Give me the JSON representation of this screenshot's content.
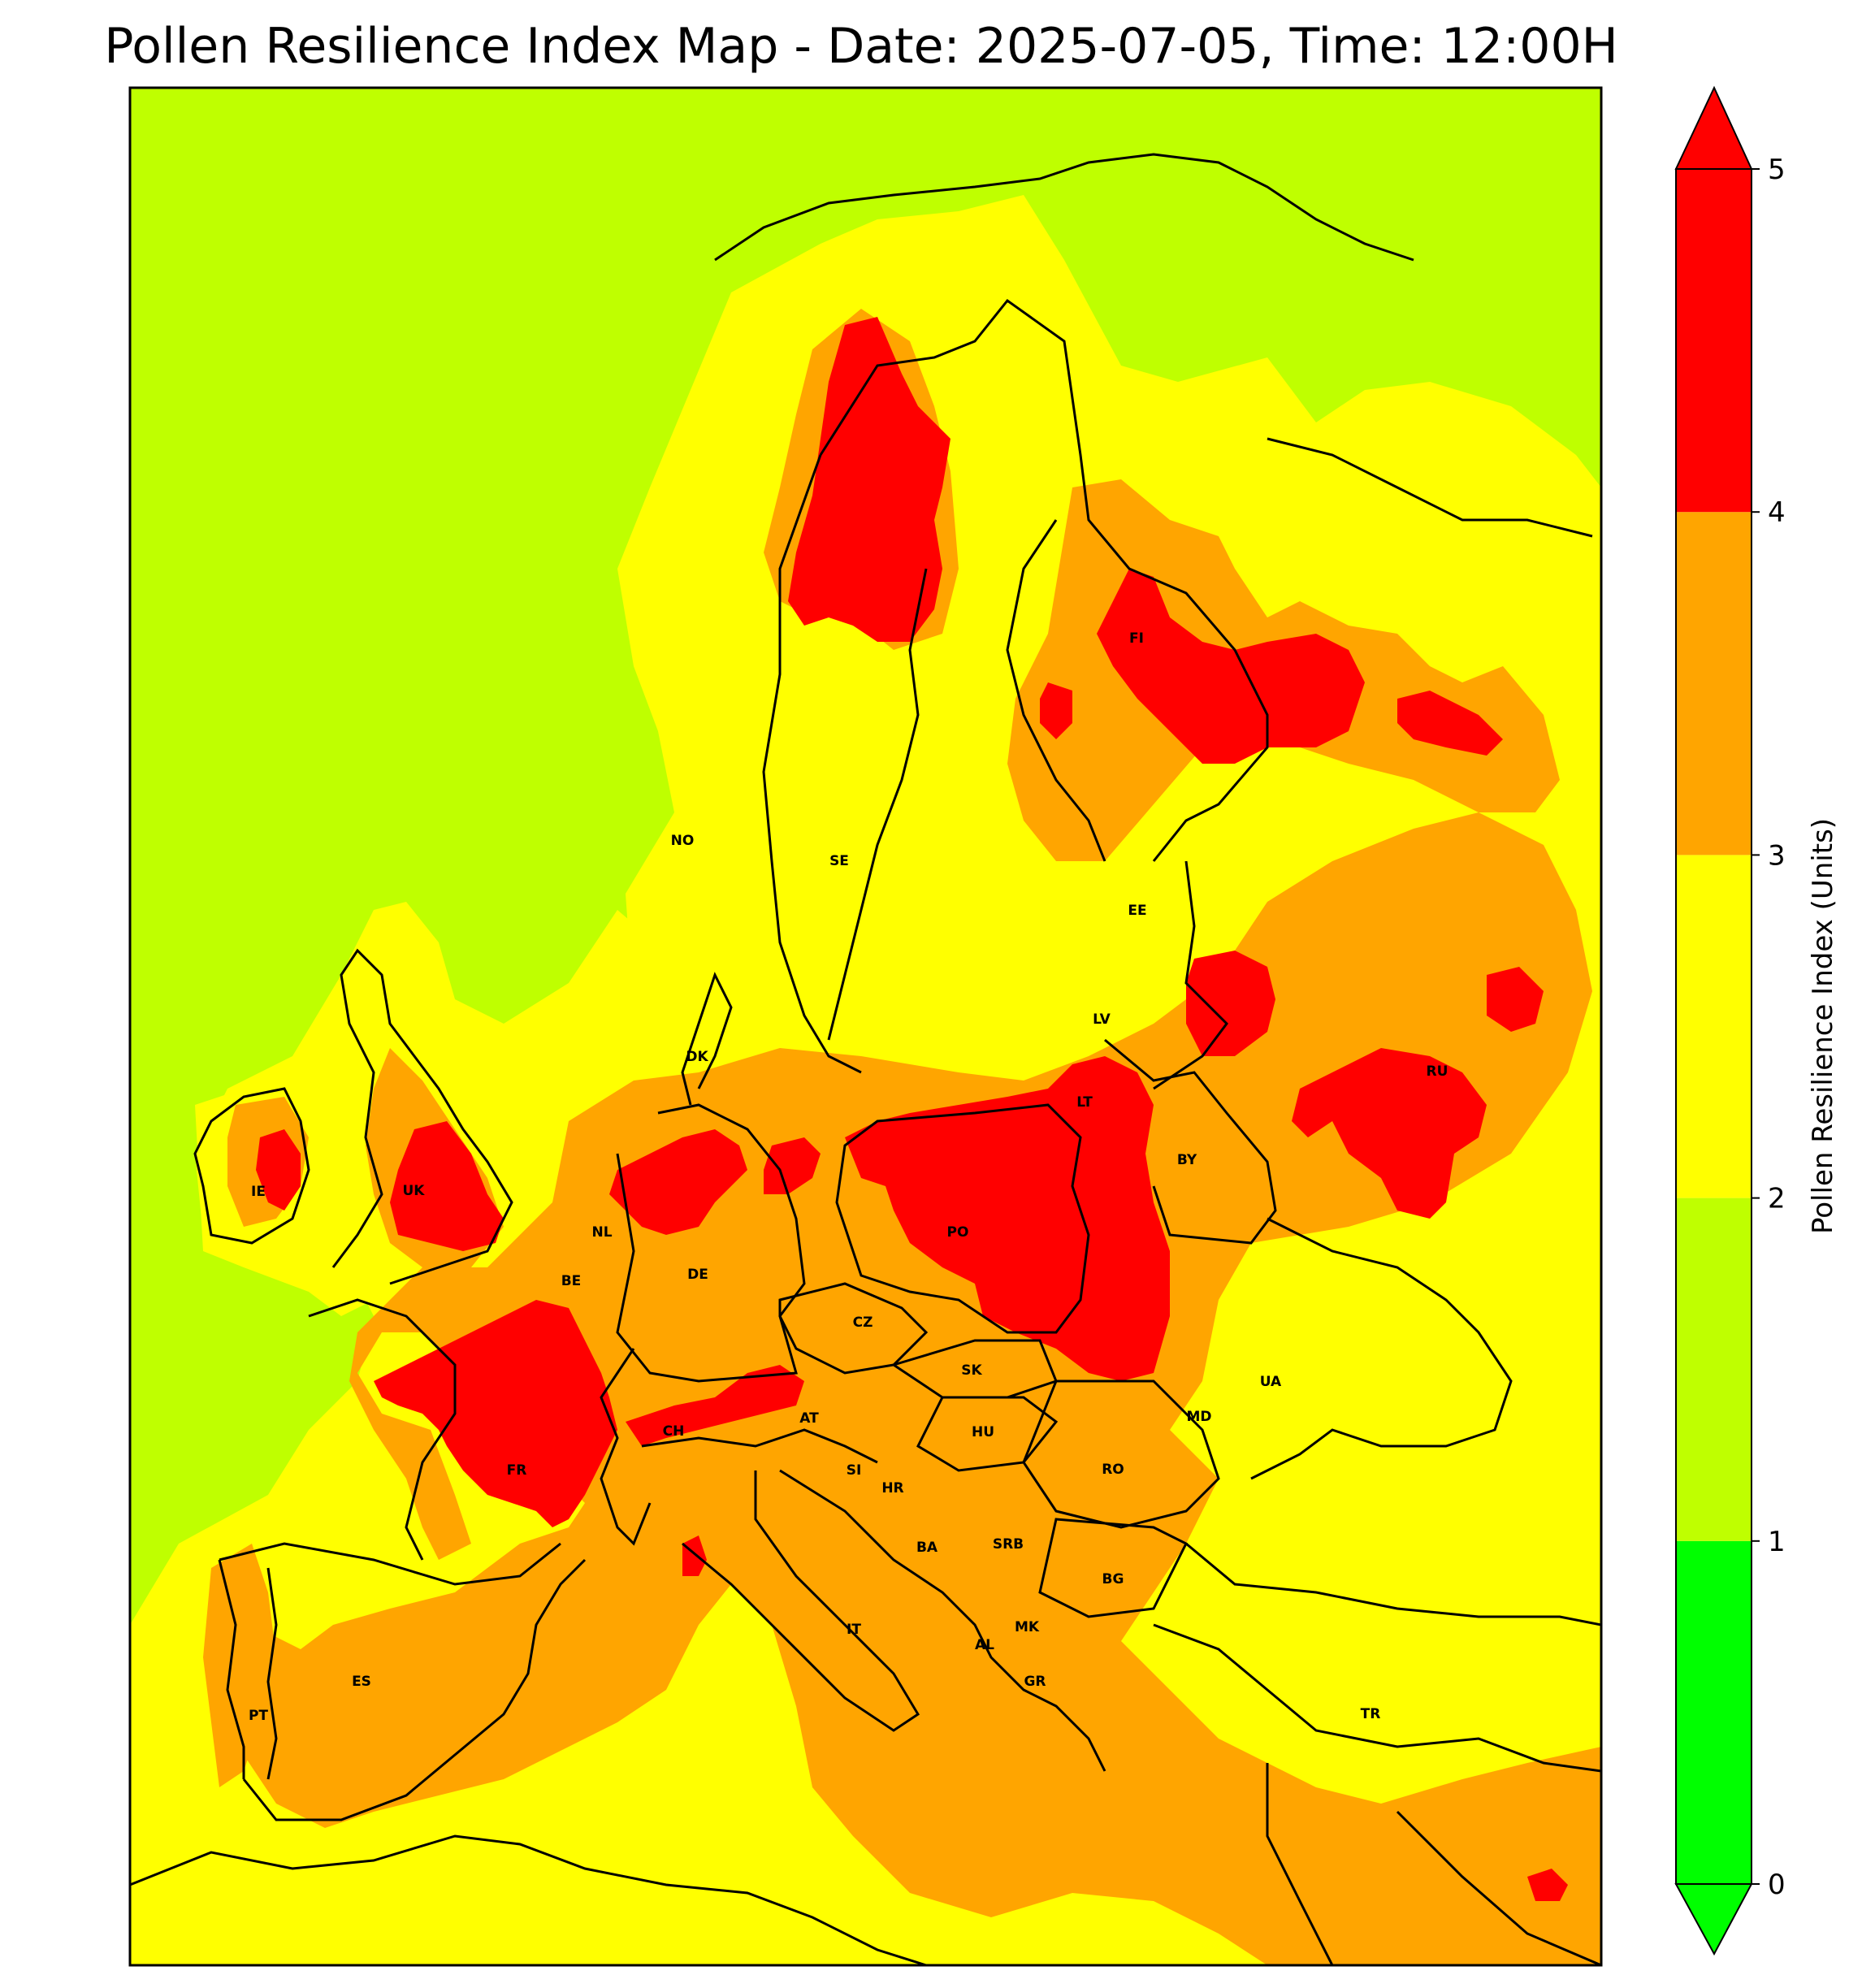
{
  "title": "Pollen Resilience Index Map - Date: 2025-07-05, Time: 12:00H",
  "colorbar": {
    "label": "Pollen Resilience Index (Units)",
    "ticks": [
      "0",
      "1",
      "2",
      "3",
      "4",
      "5"
    ],
    "bins": [
      {
        "from": 0,
        "to": 1,
        "color": "#00ff00"
      },
      {
        "from": 1,
        "to": 2,
        "color": "#bfff00"
      },
      {
        "from": 2,
        "to": 3,
        "color": "#ffff00"
      },
      {
        "from": 3,
        "to": 4,
        "color": "#ffa500"
      },
      {
        "from": 4,
        "to": 5,
        "color": "#ff0000"
      }
    ],
    "extend": "both"
  },
  "country_labels": [
    {
      "code": "NO"
    },
    {
      "code": "SE"
    },
    {
      "code": "FI"
    },
    {
      "code": "EE"
    },
    {
      "code": "LV"
    },
    {
      "code": "LT"
    },
    {
      "code": "BY"
    },
    {
      "code": "RU"
    },
    {
      "code": "DK"
    },
    {
      "code": "IE"
    },
    {
      "code": "UK"
    },
    {
      "code": "NL"
    },
    {
      "code": "BE"
    },
    {
      "code": "DE"
    },
    {
      "code": "PO"
    },
    {
      "code": "CZ"
    },
    {
      "code": "SK"
    },
    {
      "code": "UA"
    },
    {
      "code": "MD"
    },
    {
      "code": "AT"
    },
    {
      "code": "CH"
    },
    {
      "code": "HU"
    },
    {
      "code": "RO"
    },
    {
      "code": "FR"
    },
    {
      "code": "SI"
    },
    {
      "code": "HR"
    },
    {
      "code": "BA"
    },
    {
      "code": "SRB"
    },
    {
      "code": "BG"
    },
    {
      "code": "MK"
    },
    {
      "code": "AL"
    },
    {
      "code": "GR"
    },
    {
      "code": "IT"
    },
    {
      "code": "ES"
    },
    {
      "code": "PT"
    },
    {
      "code": "TR"
    }
  ]
}
